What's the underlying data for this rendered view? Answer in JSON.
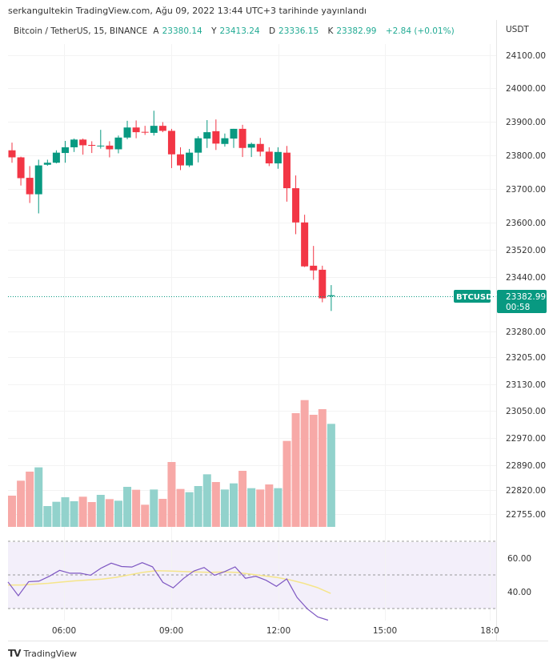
{
  "header": {
    "published": "serkangultekin TradingView.com, Ağu 09, 2022 13:44 UTC+3 tarihinde yayınlandı"
  },
  "legend": {
    "symbol": "Bitcoin / TetherUS, 15, BINANCE",
    "open_label": "A",
    "open": "23380.14",
    "high_label": "Y",
    "high": "23413.24",
    "low_label": "D",
    "low": "23336.15",
    "close_label": "K",
    "close": "23382.99",
    "change": "+2.84 (+0.01%)"
  },
  "axis": {
    "currency": "USDT",
    "price_labels": [
      "24100.00",
      "24000.00",
      "23900.00",
      "23800.00",
      "23700.00",
      "23600.00",
      "23520.00",
      "23440.00",
      "23280.00",
      "23205.00",
      "23130.00",
      "23050.00",
      "22970.00",
      "22890.00",
      "22820.00",
      "22755.00"
    ],
    "rsi_labels": [
      "60.00",
      "40.00"
    ],
    "time_labels": [
      "06:00",
      "09:00",
      "12:00",
      "15:00",
      "18:0"
    ]
  },
  "price_tag": {
    "symbol": "BTCUSDT",
    "price": "23382.99",
    "countdown": "00:58"
  },
  "footer": {
    "brand": "TradingView"
  },
  "colors": {
    "up": "#089981",
    "down": "#f23645",
    "vol_up": "#92d2cc",
    "vol_down": "#f7a9a7",
    "rsi": "#7e57c2",
    "rsi_ma": "#f5e58a",
    "rsi_bg": "#f3effa"
  },
  "chart_data": {
    "type": "candlestick",
    "interval_minutes": 15,
    "candles": [
      [
        23815,
        23838,
        23778,
        23794
      ],
      [
        23794,
        23796,
        23710,
        23732
      ],
      [
        23733,
        23768,
        23658,
        23684
      ],
      [
        23684,
        23787,
        23627,
        23770
      ],
      [
        23772,
        23787,
        23769,
        23778
      ],
      [
        23778,
        23815,
        23776,
        23808
      ],
      [
        23807,
        23843,
        23778,
        23824
      ],
      [
        23824,
        23850,
        23810,
        23847
      ],
      [
        23847,
        23850,
        23802,
        23830
      ],
      [
        23831,
        23842,
        23807,
        23829
      ],
      [
        23827,
        23876,
        23820,
        23829
      ],
      [
        23829,
        23842,
        23794,
        23818
      ],
      [
        23818,
        23859,
        23806,
        23853
      ],
      [
        23853,
        23903,
        23848,
        23883
      ],
      [
        23883,
        23904,
        23851,
        23869
      ],
      [
        23870,
        23888,
        23861,
        23868
      ],
      [
        23867,
        23933,
        23859,
        23888
      ],
      [
        23888,
        23899,
        23869,
        23873
      ],
      [
        23873,
        23879,
        23762,
        23803
      ],
      [
        23803,
        23824,
        23756,
        23770
      ],
      [
        23770,
        23819,
        23765,
        23808
      ],
      [
        23808,
        23857,
        23779,
        23851
      ],
      [
        23850,
        23905,
        23822,
        23869
      ],
      [
        23872,
        23907,
        23816,
        23835
      ],
      [
        23834,
        23865,
        23826,
        23851
      ],
      [
        23850,
        23879,
        23822,
        23879
      ],
      [
        23879,
        23891,
        23795,
        23822
      ],
      [
        23823,
        23838,
        23795,
        23834
      ],
      [
        23834,
        23852,
        23797,
        23811
      ],
      [
        23811,
        23824,
        23768,
        23776
      ],
      [
        23776,
        23824,
        23760,
        23810
      ],
      [
        23808,
        23828,
        23662,
        23702
      ],
      [
        23702,
        23740,
        23565,
        23600
      ],
      [
        23600,
        23623,
        23467,
        23469
      ],
      [
        23471,
        23530,
        23429,
        23457
      ],
      [
        23459,
        23471,
        23362,
        23374
      ],
      [
        23380.14,
        23413.24,
        23336.15,
        23382.99
      ]
    ],
    "volume_relative": [
      117,
      173,
      207,
      223,
      78,
      94,
      111,
      96,
      113,
      93,
      120,
      104,
      98,
      150,
      139,
      83,
      140,
      105,
      243,
      142,
      130,
      153,
      197,
      168,
      140,
      163,
      210,
      145,
      140,
      159,
      145,
      322,
      426,
      475,
      420,
      441,
      386
    ],
    "rsi": [
      45.8,
      37.6,
      46,
      46.3,
      49.2,
      52.7,
      51,
      51,
      49.8,
      54,
      57,
      55,
      54.7,
      57.3,
      54.8,
      45.6,
      42.3,
      47.9,
      52.3,
      54.4,
      49.8,
      52,
      54.8,
      48,
      49.2,
      46.8,
      43.2,
      47.6,
      36.6,
      29.8,
      25,
      23.1
    ],
    "rsi_ma": [
      44,
      44,
      44.5,
      45,
      45.8,
      46.5,
      47,
      47.5,
      48.5,
      50,
      51.5,
      52.5,
      52.3,
      52,
      51.8,
      51.5,
      51.8,
      51.5,
      50.5,
      49.5,
      48.5,
      47,
      45,
      42.5,
      39
    ],
    "rsi_levels": [
      70,
      50,
      30
    ]
  }
}
